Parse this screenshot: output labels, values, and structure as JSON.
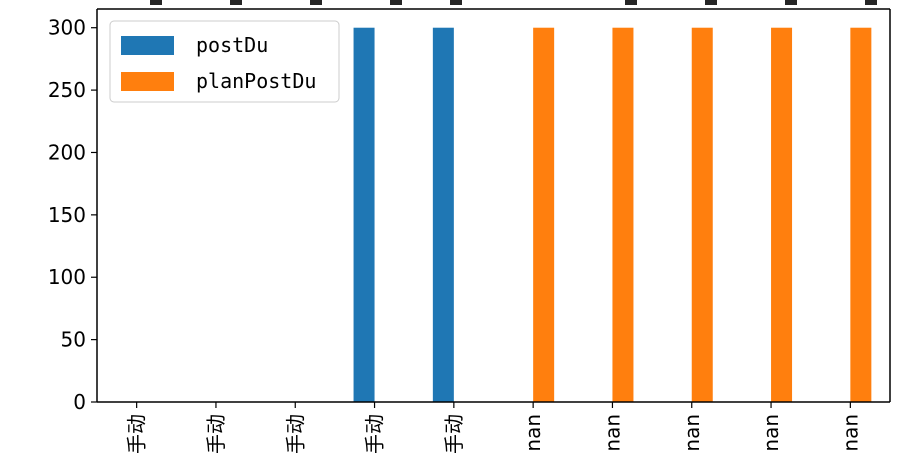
{
  "chart_data": {
    "type": "bar",
    "categories": [
      "手动",
      "手动",
      "手动",
      "手动",
      "手动",
      "nan",
      "nan",
      "nan",
      "nan",
      "nan"
    ],
    "series": [
      {
        "name": "postDu",
        "values": [
          0,
          0,
          0,
          300,
          300,
          0,
          0,
          0,
          0,
          0
        ],
        "color": "#1f77b4"
      },
      {
        "name": "planPostDu",
        "values": [
          0,
          0,
          0,
          0,
          0,
          300,
          300,
          300,
          300,
          300
        ],
        "color": "#ff7f0e"
      }
    ],
    "title": "",
    "xlabel": "",
    "ylabel": "",
    "ylim": [
      0,
      315
    ],
    "yticks": [
      0,
      50,
      100,
      150,
      200,
      250,
      300
    ],
    "grid": false,
    "legend_position": "top-left",
    "x_tick_rotation": "vertical"
  }
}
